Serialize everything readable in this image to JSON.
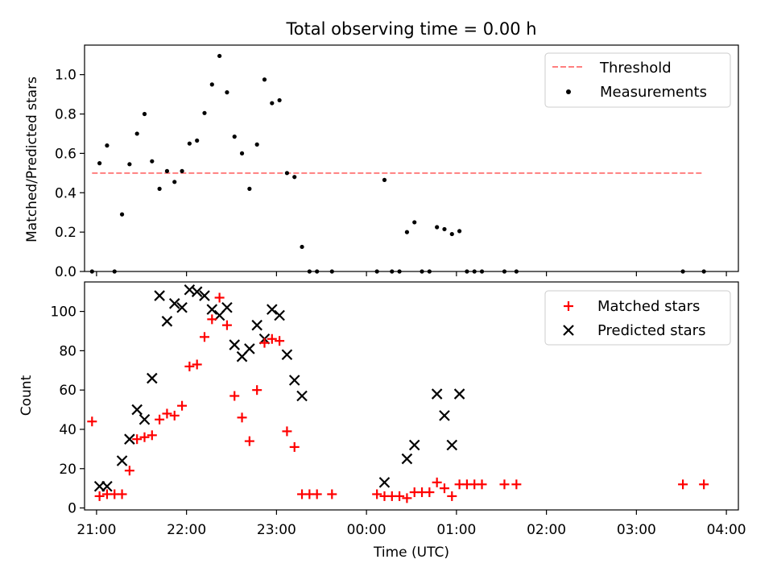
{
  "figure": {
    "title": "Total observing time = 0.00 h"
  },
  "chart_data": [
    {
      "type": "scatter",
      "panel": "top",
      "ylabel": "Matched/Predicted stars",
      "xlim": [
        "20:52",
        "04:08"
      ],
      "ylim": [
        0,
        1.15
      ],
      "yticks": [
        "0.0",
        "0.2",
        "0.4",
        "0.6",
        "0.8",
        "1.0"
      ],
      "grid": false,
      "legend": {
        "placement": "top-right",
        "entries": [
          "Threshold",
          "Measurements"
        ]
      },
      "threshold": {
        "name": "Threshold",
        "value": 0.5,
        "x": [
          "20:57",
          "03:45"
        ],
        "color": "#ff7f7f",
        "style": "dashed"
      },
      "series": [
        {
          "name": "Measurements",
          "marker": "dot",
          "color": "#000000",
          "points": [
            [
              "20:57",
              0.0
            ],
            [
              "21:02",
              0.55
            ],
            [
              "21:07",
              0.64
            ],
            [
              "21:12",
              0.0
            ],
            [
              "21:17",
              0.29
            ],
            [
              "21:22",
              0.545
            ],
            [
              "21:27",
              0.7
            ],
            [
              "21:32",
              0.8
            ],
            [
              "21:37",
              0.56
            ],
            [
              "21:42",
              0.42
            ],
            [
              "21:47",
              0.51
            ],
            [
              "21:52",
              0.455
            ],
            [
              "21:57",
              0.51
            ],
            [
              "22:02",
              0.65
            ],
            [
              "22:07",
              0.665
            ],
            [
              "22:12",
              0.805
            ],
            [
              "22:17",
              0.95
            ],
            [
              "22:22",
              1.095
            ],
            [
              "22:27",
              0.91
            ],
            [
              "22:32",
              0.685
            ],
            [
              "22:37",
              0.6
            ],
            [
              "22:42",
              0.42
            ],
            [
              "22:47",
              0.645
            ],
            [
              "22:52",
              0.975
            ],
            [
              "22:57",
              0.855
            ],
            [
              "23:02",
              0.87
            ],
            [
              "23:07",
              0.5
            ],
            [
              "23:12",
              0.48
            ],
            [
              "23:17",
              0.125
            ],
            [
              "23:22",
              0.0
            ],
            [
              "23:27",
              0.0
            ],
            [
              "23:37",
              0.0
            ],
            [
              "00:07",
              0.0
            ],
            [
              "00:12",
              0.465
            ],
            [
              "00:17",
              0.0
            ],
            [
              "00:22",
              0.0
            ],
            [
              "00:27",
              0.2
            ],
            [
              "00:32",
              0.25
            ],
            [
              "00:37",
              0.0
            ],
            [
              "00:42",
              0.0
            ],
            [
              "00:47",
              0.225
            ],
            [
              "00:52",
              0.215
            ],
            [
              "00:57",
              0.19
            ],
            [
              "01:02",
              0.205
            ],
            [
              "01:07",
              0.0
            ],
            [
              "01:12",
              0.0
            ],
            [
              "01:17",
              0.0
            ],
            [
              "01:32",
              0.0
            ],
            [
              "01:40",
              0.0
            ],
            [
              "03:31",
              0.0
            ],
            [
              "03:45",
              0.0
            ]
          ]
        }
      ]
    },
    {
      "type": "scatter",
      "panel": "bottom",
      "xlabel": "Time (UTC)",
      "ylabel": "Count",
      "xlim": [
        "20:52",
        "04:08"
      ],
      "ylim": [
        -1,
        115
      ],
      "xticks": [
        "21:00",
        "22:00",
        "23:00",
        "00:00",
        "01:00",
        "02:00",
        "03:00",
        "04:00"
      ],
      "yticks": [
        "0",
        "20",
        "40",
        "60",
        "80",
        "100"
      ],
      "grid": false,
      "legend": {
        "placement": "top-right",
        "entries": [
          "Matched stars",
          "Predicted stars"
        ]
      },
      "series": [
        {
          "name": "Matched stars",
          "marker": "plus",
          "color": "#ff0000",
          "points": [
            [
              "20:57",
              44
            ],
            [
              "21:02",
              6
            ],
            [
              "21:07",
              7
            ],
            [
              "21:12",
              7
            ],
            [
              "21:17",
              7
            ],
            [
              "21:22",
              19
            ],
            [
              "21:27",
              35
            ],
            [
              "21:32",
              36
            ],
            [
              "21:37",
              37
            ],
            [
              "21:42",
              45
            ],
            [
              "21:47",
              48
            ],
            [
              "21:52",
              47
            ],
            [
              "21:57",
              52
            ],
            [
              "22:02",
              72
            ],
            [
              "22:07",
              73
            ],
            [
              "22:12",
              87
            ],
            [
              "22:17",
              96
            ],
            [
              "22:22",
              107
            ],
            [
              "22:27",
              93
            ],
            [
              "22:32",
              57
            ],
            [
              "22:37",
              46
            ],
            [
              "22:42",
              34
            ],
            [
              "22:47",
              60
            ],
            [
              "22:52",
              84
            ],
            [
              "22:57",
              86
            ],
            [
              "23:02",
              85
            ],
            [
              "23:07",
              39
            ],
            [
              "23:12",
              31
            ],
            [
              "23:17",
              7
            ],
            [
              "23:22",
              7
            ],
            [
              "23:27",
              7
            ],
            [
              "23:37",
              7
            ],
            [
              "00:07",
              7
            ],
            [
              "00:12",
              6
            ],
            [
              "00:17",
              6
            ],
            [
              "00:22",
              6
            ],
            [
              "00:27",
              5
            ],
            [
              "00:32",
              8
            ],
            [
              "00:37",
              8
            ],
            [
              "00:42",
              8
            ],
            [
              "00:47",
              13
            ],
            [
              "00:52",
              10
            ],
            [
              "00:57",
              6
            ],
            [
              "01:02",
              12
            ],
            [
              "01:07",
              12
            ],
            [
              "01:12",
              12
            ],
            [
              "01:17",
              12
            ],
            [
              "01:32",
              12
            ],
            [
              "01:40",
              12
            ],
            [
              "03:31",
              12
            ],
            [
              "03:45",
              12
            ]
          ]
        },
        {
          "name": "Predicted stars",
          "marker": "x",
          "color": "#000000",
          "points": [
            [
              "21:02",
              11
            ],
            [
              "21:07",
              11
            ],
            [
              "21:17",
              24
            ],
            [
              "21:22",
              35
            ],
            [
              "21:27",
              50
            ],
            [
              "21:32",
              45
            ],
            [
              "21:37",
              66
            ],
            [
              "21:42",
              108
            ],
            [
              "21:47",
              95
            ],
            [
              "21:52",
              104
            ],
            [
              "21:57",
              102
            ],
            [
              "22:02",
              111
            ],
            [
              "22:07",
              110
            ],
            [
              "22:12",
              108
            ],
            [
              "22:17",
              101
            ],
            [
              "22:22",
              98
            ],
            [
              "22:27",
              102
            ],
            [
              "22:32",
              83
            ],
            [
              "22:37",
              77
            ],
            [
              "22:42",
              81
            ],
            [
              "22:47",
              93
            ],
            [
              "22:52",
              86
            ],
            [
              "22:57",
              101
            ],
            [
              "23:02",
              98
            ],
            [
              "23:07",
              78
            ],
            [
              "23:12",
              65
            ],
            [
              "23:17",
              57
            ],
            [
              "00:12",
              13
            ],
            [
              "00:27",
              25
            ],
            [
              "00:32",
              32
            ],
            [
              "00:47",
              58
            ],
            [
              "00:52",
              47
            ],
            [
              "00:57",
              32
            ],
            [
              "01:02",
              58
            ]
          ]
        }
      ]
    }
  ]
}
